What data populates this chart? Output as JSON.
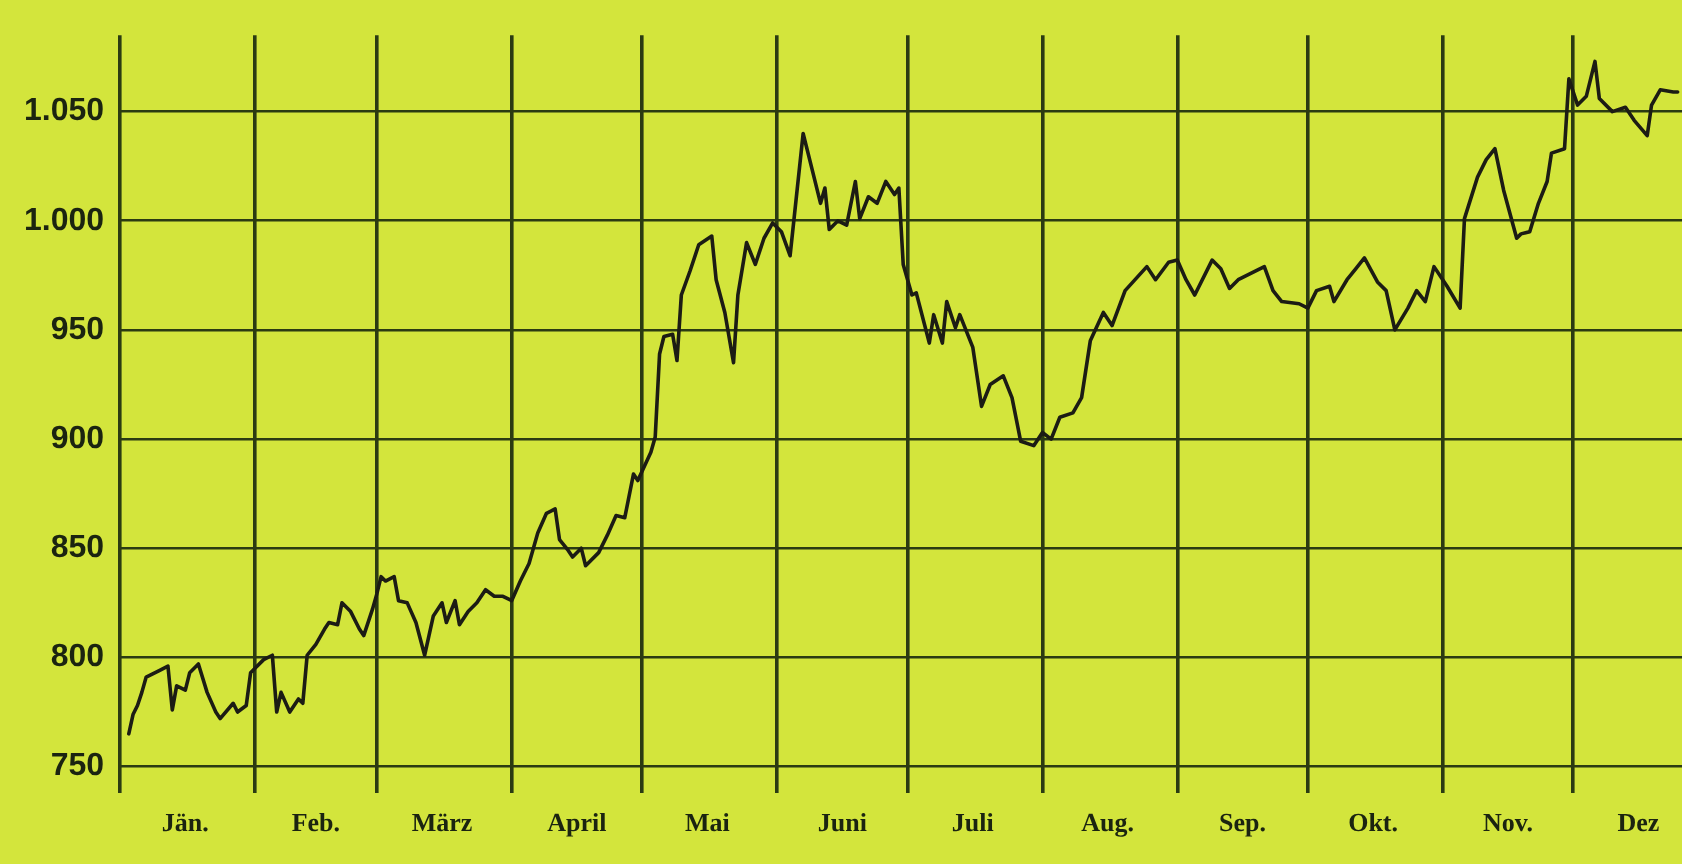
{
  "chart_data": {
    "type": "line",
    "color": "#1c1c14",
    "marker": "none",
    "line_style": "solid",
    "grid": true,
    "xlim": [
      "--01-01",
      "--12-26"
    ],
    "ylim": [
      738,
      1085
    ],
    "xticks": [
      {
        "value": "--01-01",
        "label": null
      },
      {
        "value": "--01-16",
        "label": "Jän."
      },
      {
        "value": "--02-01",
        "label": null
      },
      {
        "value": "--02-15",
        "label": "Feb."
      },
      {
        "value": "--03-01",
        "label": null
      },
      {
        "value": "--03-16",
        "label": "März"
      },
      {
        "value": "--04-01",
        "label": null
      },
      {
        "value": "--04-16",
        "label": "April"
      },
      {
        "value": "--05-01",
        "label": null
      },
      {
        "value": "--05-16",
        "label": "Mai"
      },
      {
        "value": "--06-01",
        "label": null
      },
      {
        "value": "--06-16",
        "label": "Juni"
      },
      {
        "value": "--07-01",
        "label": null
      },
      {
        "value": "--07-16",
        "label": "Juli"
      },
      {
        "value": "--08-01",
        "label": null
      },
      {
        "value": "--08-16",
        "label": "Aug."
      },
      {
        "value": "--09-01",
        "label": null
      },
      {
        "value": "--09-16",
        "label": "Sep."
      },
      {
        "value": "--10-01",
        "label": null
      },
      {
        "value": "--10-16",
        "label": "Okt."
      },
      {
        "value": "--11-01",
        "label": null
      },
      {
        "value": "--11-16",
        "label": "Nov."
      },
      {
        "value": "--12-01",
        "label": null
      },
      {
        "value": "--12-16",
        "label": "Dez"
      }
    ],
    "yticks": [
      750,
      800,
      850,
      900,
      950,
      {
        "value": 1000,
        "label": "1.000"
      },
      {
        "value": 1050,
        "label": "1.050"
      }
    ],
    "x": [
      "--01-03",
      "--01-04",
      "--01-05",
      "--01-06",
      "--01-07",
      "--01-10",
      "--01-12",
      "--01-13",
      "--01-14",
      "--01-16",
      "--01-17",
      "--01-19",
      "--01-21",
      "--01-23",
      "--01-24",
      "--01-27",
      "--01-28",
      "--01-30",
      "--01-31",
      "--02-03",
      "--02-05",
      "--02-06",
      "--02-07",
      "--02-09",
      "--02-11",
      "--02-12",
      "--02-13",
      "--02-15",
      "--02-17",
      "--02-18",
      "--02-20",
      "--02-21",
      "--02-23",
      "--02-25",
      "--02-26",
      "--02-28",
      "--03-01",
      "--03-02",
      "--03-03",
      "--03-05",
      "--03-06",
      "--03-08",
      "--03-10",
      "--03-12",
      "--03-13",
      "--03-14",
      "--03-16",
      "--03-17",
      "--03-19",
      "--03-20",
      "--03-22",
      "--03-24",
      "--03-26",
      "--03-28",
      "--03-30",
      "--04-01",
      "--04-03",
      "--04-05",
      "--04-07",
      "--04-09",
      "--04-11",
      "--04-12",
      "--04-14",
      "--04-15",
      "--04-17",
      "--04-18",
      "--04-21",
      "--04-23",
      "--04-25",
      "--04-27",
      "--04-29",
      "--04-30",
      "--05-03",
      "--05-04",
      "--05-05",
      "--05-06",
      "--05-08",
      "--05-09",
      "--05-10",
      "--05-12",
      "--05-14",
      "--05-17",
      "--05-18",
      "--05-20",
      "--05-22",
      "--05-23",
      "--05-25",
      "--05-27",
      "--05-29",
      "--05-31",
      "--06-02",
      "--06-04",
      "--06-07",
      "--06-09",
      "--06-11",
      "--06-12",
      "--06-13",
      "--06-15",
      "--06-17",
      "--06-19",
      "--06-20",
      "--06-22",
      "--06-24",
      "--06-26",
      "--06-28",
      "--06-29",
      "--06-30",
      "--07-02",
      "--07-03",
      "--07-06",
      "--07-07",
      "--07-09",
      "--07-10",
      "--07-12",
      "--07-13",
      "--07-16",
      "--07-18",
      "--07-20",
      "--07-23",
      "--07-25",
      "--07-27",
      "--07-30",
      "--08-01",
      "--08-03",
      "--08-05",
      "--08-08",
      "--08-10",
      "--08-12",
      "--08-15",
      "--08-17",
      "--08-20",
      "--08-25",
      "--08-27",
      "--08-30",
      "--09-01",
      "--09-03",
      "--09-05",
      "--09-09",
      "--09-11",
      "--09-13",
      "--09-15",
      "--09-21",
      "--09-23",
      "--09-25",
      "--09-29",
      "--10-01",
      "--10-03",
      "--10-06",
      "--10-07",
      "--10-10",
      "--10-12",
      "--10-14",
      "--10-17",
      "--10-19",
      "--10-21",
      "--10-24",
      "--10-26",
      "--10-28",
      "--10-30",
      "--11-02",
      "--11-05",
      "--11-06",
      "--11-09",
      "--11-11",
      "--11-13",
      "--11-15",
      "--11-18",
      "--11-19",
      "--11-21",
      "--11-23",
      "--11-25",
      "--11-26",
      "--11-29",
      "--11-30",
      "--12-02",
      "--12-04",
      "--12-06",
      "--12-07",
      "--12-10",
      "--12-13",
      "--12-15",
      "--12-18",
      "--12-19",
      "--12-21",
      "--12-24",
      "--12-25"
    ],
    "values": [
      765,
      774,
      778,
      784,
      791,
      794,
      796,
      776,
      787,
      785,
      793,
      797,
      784,
      775,
      772,
      779,
      775,
      778,
      793,
      799,
      801,
      775,
      784,
      775,
      781,
      779,
      801,
      806,
      813,
      816,
      815,
      825,
      821,
      813,
      810,
      822,
      829,
      837,
      835,
      837,
      826,
      825,
      816,
      801,
      810,
      819,
      825,
      816,
      826,
      815,
      821,
      825,
      831,
      828,
      828,
      826,
      835,
      843,
      857,
      866,
      868,
      854,
      849,
      846,
      850,
      842,
      848,
      856,
      865,
      864,
      884,
      881,
      894,
      901,
      939,
      947,
      948,
      936,
      966,
      977,
      989,
      993,
      973,
      958,
      935,
      966,
      990,
      980,
      992,
      999,
      995,
      984,
      1040,
      1024,
      1008,
      1015,
      996,
      1000,
      998,
      1018,
      1001,
      1011,
      1008,
      1018,
      1012,
      1015,
      980,
      966,
      967,
      944,
      957,
      944,
      963,
      951,
      957,
      942,
      915,
      925,
      929,
      919,
      899,
      897,
      903,
      900,
      910,
      912,
      919,
      945,
      958,
      952,
      968,
      979,
      973,
      981,
      982,
      973,
      966,
      982,
      978,
      969,
      973,
      979,
      968,
      963,
      962,
      960,
      968,
      970,
      963,
      973,
      978,
      983,
      972,
      968,
      950,
      960,
      968,
      963,
      979,
      970,
      960,
      1001,
      1020,
      1028,
      1033,
      1014,
      992,
      994,
      995,
      1008,
      1018,
      1031,
      1033,
      1065,
      1053,
      1057,
      1073,
      1056,
      1050,
      1052,
      1046,
      1039,
      1053,
      1060,
      1059,
      1059
    ]
  }
}
